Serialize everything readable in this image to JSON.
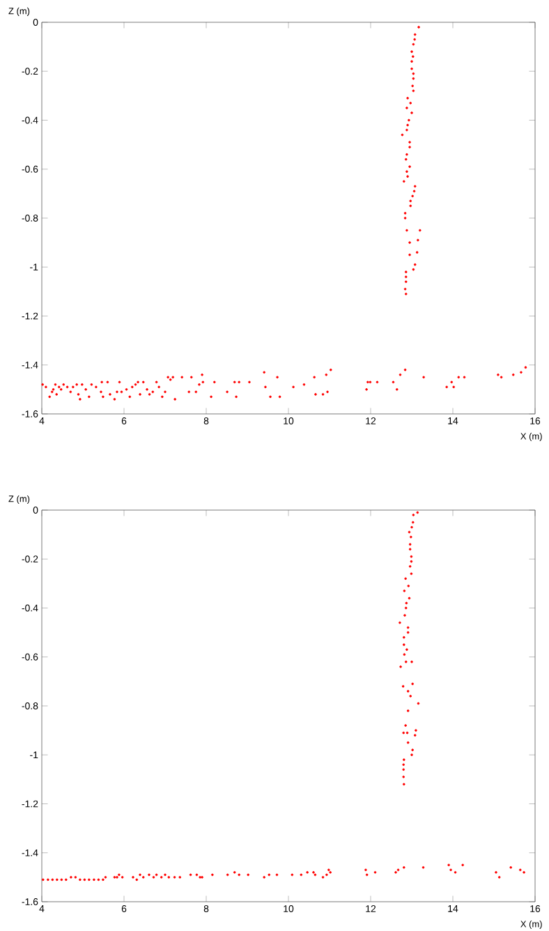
{
  "chart_data": [
    {
      "type": "scatter",
      "xlabel": "X (m)",
      "ylabel": "Z (m)",
      "xlim": [
        4,
        16
      ],
      "ylim": [
        -1.6,
        0
      ],
      "xticks": [
        4,
        6,
        8,
        10,
        12,
        14,
        16
      ],
      "yticks": [
        -1.6,
        -1.4,
        -1.2,
        -1,
        -0.8,
        -0.6,
        -0.4,
        -0.2,
        0
      ],
      "color": "#ff0000",
      "x": [
        13.17,
        13.08,
        13.07,
        13.04,
        13.0,
        13.03,
        13.0,
        13.0,
        13.04,
        13.04,
        13.02,
        13.04,
        12.9,
        12.97,
        12.88,
        13.0,
        12.93,
        12.9,
        12.88,
        12.77,
        12.95,
        12.95,
        12.88,
        12.86,
        12.95,
        12.88,
        12.9,
        12.81,
        13.08,
        13.06,
        13.02,
        12.97,
        12.97,
        12.84,
        12.84,
        12.88,
        13.2,
        13.15,
        12.95,
        13.13,
        12.95,
        13.08,
        13.04,
        12.86,
        12.86,
        12.86,
        12.84,
        12.86,
        4.02,
        4.1,
        4.19,
        4.25,
        4.28,
        4.33,
        4.36,
        4.42,
        4.47,
        4.53,
        4.62,
        4.7,
        4.76,
        4.85,
        4.89,
        4.93,
        4.98,
        5.07,
        5.15,
        5.21,
        5.32,
        5.44,
        5.46,
        5.49,
        5.6,
        5.66,
        5.77,
        5.83,
        5.89,
        5.94,
        6.06,
        6.14,
        6.2,
        6.28,
        6.34,
        6.39,
        6.47,
        6.56,
        6.62,
        6.7,
        6.79,
        6.85,
        6.93,
        7.0,
        7.07,
        7.13,
        7.19,
        7.24,
        7.41,
        7.58,
        7.64,
        7.75,
        7.83,
        7.9,
        7.92,
        8.12,
        8.2,
        8.51,
        8.69,
        8.73,
        8.8,
        9.05,
        9.41,
        9.44,
        9.56,
        9.73,
        9.79,
        10.12,
        10.38,
        10.63,
        10.66,
        10.84,
        10.92,
        10.95,
        11.03,
        11.9,
        11.93,
        11.99,
        12.16,
        12.55,
        12.64,
        12.72,
        12.84,
        13.29,
        13.85,
        13.97,
        14.02,
        14.14,
        14.28,
        15.1,
        15.18,
        15.47,
        15.66,
        15.77
      ],
      "values": [
        -0.02,
        -0.05,
        -0.07,
        -0.09,
        -0.12,
        -0.14,
        -0.16,
        -0.19,
        -0.21,
        -0.23,
        -0.26,
        -0.28,
        -0.31,
        -0.33,
        -0.35,
        -0.37,
        -0.4,
        -0.42,
        -0.44,
        -0.46,
        -0.49,
        -0.51,
        -0.54,
        -0.56,
        -0.59,
        -0.61,
        -0.63,
        -0.65,
        -0.67,
        -0.69,
        -0.71,
        -0.73,
        -0.75,
        -0.78,
        -0.8,
        -0.85,
        -0.85,
        -0.89,
        -0.9,
        -0.94,
        -0.95,
        -0.99,
        -1.01,
        -1.02,
        -1.04,
        -1.06,
        -1.09,
        -1.11,
        -1.48,
        -1.49,
        -1.53,
        -1.51,
        -1.5,
        -1.48,
        -1.52,
        -1.49,
        -1.5,
        -1.48,
        -1.49,
        -1.51,
        -1.49,
        -1.48,
        -1.52,
        -1.54,
        -1.48,
        -1.5,
        -1.53,
        -1.48,
        -1.49,
        -1.51,
        -1.47,
        -1.53,
        -1.47,
        -1.52,
        -1.54,
        -1.51,
        -1.47,
        -1.51,
        -1.5,
        -1.53,
        -1.49,
        -1.48,
        -1.47,
        -1.52,
        -1.47,
        -1.5,
        -1.52,
        -1.51,
        -1.47,
        -1.49,
        -1.53,
        -1.51,
        -1.45,
        -1.46,
        -1.45,
        -1.54,
        -1.45,
        -1.51,
        -1.45,
        -1.51,
        -1.48,
        -1.44,
        -1.47,
        -1.53,
        -1.47,
        -1.51,
        -1.47,
        -1.53,
        -1.47,
        -1.47,
        -1.43,
        -1.49,
        -1.53,
        -1.45,
        -1.53,
        -1.49,
        -1.48,
        -1.45,
        -1.52,
        -1.52,
        -1.44,
        -1.51,
        -1.42,
        -1.5,
        -1.47,
        -1.47,
        -1.47,
        -1.47,
        -1.5,
        -1.44,
        -1.42,
        -1.45,
        -1.49,
        -1.47,
        -1.49,
        -1.45,
        -1.45,
        -1.44,
        -1.45,
        -1.44,
        -1.43,
        -1.41
      ]
    },
    {
      "type": "scatter",
      "xlabel": "X (m)",
      "ylabel": "Z (m)",
      "xlim": [
        4,
        16
      ],
      "ylim": [
        -1.6,
        0
      ],
      "xticks": [
        4,
        6,
        8,
        10,
        12,
        14,
        16
      ],
      "yticks": [
        -1.6,
        -1.4,
        -1.2,
        -1,
        -0.8,
        -0.6,
        -0.4,
        -0.2,
        0
      ],
      "color": "#ff0000",
      "x": [
        13.14,
        13.04,
        13.03,
        13.0,
        12.94,
        12.98,
        12.96,
        12.96,
        12.99,
        12.99,
        12.96,
        12.99,
        12.85,
        12.92,
        12.82,
        12.94,
        12.87,
        12.86,
        12.83,
        12.71,
        12.91,
        12.91,
        12.81,
        12.81,
        12.88,
        12.82,
        12.86,
        13.0,
        12.73,
        13.02,
        12.79,
        12.91,
        12.97,
        13.16,
        12.91,
        12.85,
        12.89,
        12.8,
        13.1,
        13.08,
        12.91,
        13.02,
        13.0,
        12.81,
        12.8,
        12.8,
        12.8,
        12.81,
        4.03,
        4.15,
        4.26,
        4.37,
        4.48,
        4.59,
        4.71,
        4.82,
        4.93,
        5.04,
        5.15,
        5.27,
        5.38,
        5.49,
        5.55,
        5.77,
        5.83,
        5.88,
        5.96,
        6.22,
        6.31,
        6.39,
        6.47,
        6.61,
        6.72,
        6.79,
        6.91,
        7.0,
        7.09,
        7.23,
        7.36,
        7.62,
        7.77,
        7.85,
        7.9,
        8.15,
        8.52,
        8.69,
        8.8,
        9.02,
        9.41,
        9.53,
        9.72,
        10.09,
        10.31,
        10.46,
        10.61,
        10.65,
        10.84,
        10.93,
        10.98,
        11.02,
        11.88,
        11.91,
        12.11,
        12.61,
        12.67,
        12.81,
        13.28,
        13.9,
        13.95,
        14.06,
        14.24,
        15.05,
        15.13,
        15.41,
        15.64,
        15.73
      ],
      "values": [
        -0.01,
        -0.02,
        -0.05,
        -0.07,
        -0.09,
        -0.11,
        -0.14,
        -0.16,
        -0.19,
        -0.21,
        -0.23,
        -0.26,
        -0.28,
        -0.31,
        -0.33,
        -0.36,
        -0.38,
        -0.4,
        -0.43,
        -0.46,
        -0.48,
        -0.5,
        -0.52,
        -0.55,
        -0.57,
        -0.59,
        -0.62,
        -0.62,
        -0.64,
        -0.71,
        -0.72,
        -0.74,
        -0.76,
        -0.79,
        -0.82,
        -0.88,
        -0.91,
        -0.91,
        -0.9,
        -0.92,
        -0.95,
        -0.98,
        -1.0,
        -1.02,
        -1.04,
        -1.06,
        -1.09,
        -1.12,
        -1.51,
        -1.51,
        -1.51,
        -1.51,
        -1.51,
        -1.51,
        -1.5,
        -1.5,
        -1.51,
        -1.51,
        -1.51,
        -1.51,
        -1.51,
        -1.51,
        -1.5,
        -1.5,
        -1.5,
        -1.49,
        -1.5,
        -1.5,
        -1.51,
        -1.49,
        -1.5,
        -1.49,
        -1.5,
        -1.49,
        -1.5,
        -1.49,
        -1.5,
        -1.5,
        -1.5,
        -1.49,
        -1.49,
        -1.5,
        -1.5,
        -1.49,
        -1.49,
        -1.48,
        -1.49,
        -1.49,
        -1.5,
        -1.49,
        -1.49,
        -1.49,
        -1.49,
        -1.48,
        -1.48,
        -1.49,
        -1.5,
        -1.49,
        -1.47,
        -1.48,
        -1.47,
        -1.49,
        -1.48,
        -1.48,
        -1.47,
        -1.46,
        -1.46,
        -1.45,
        -1.47,
        -1.48,
        -1.45,
        -1.48,
        -1.5,
        -1.46,
        -1.47,
        -1.48
      ]
    }
  ]
}
